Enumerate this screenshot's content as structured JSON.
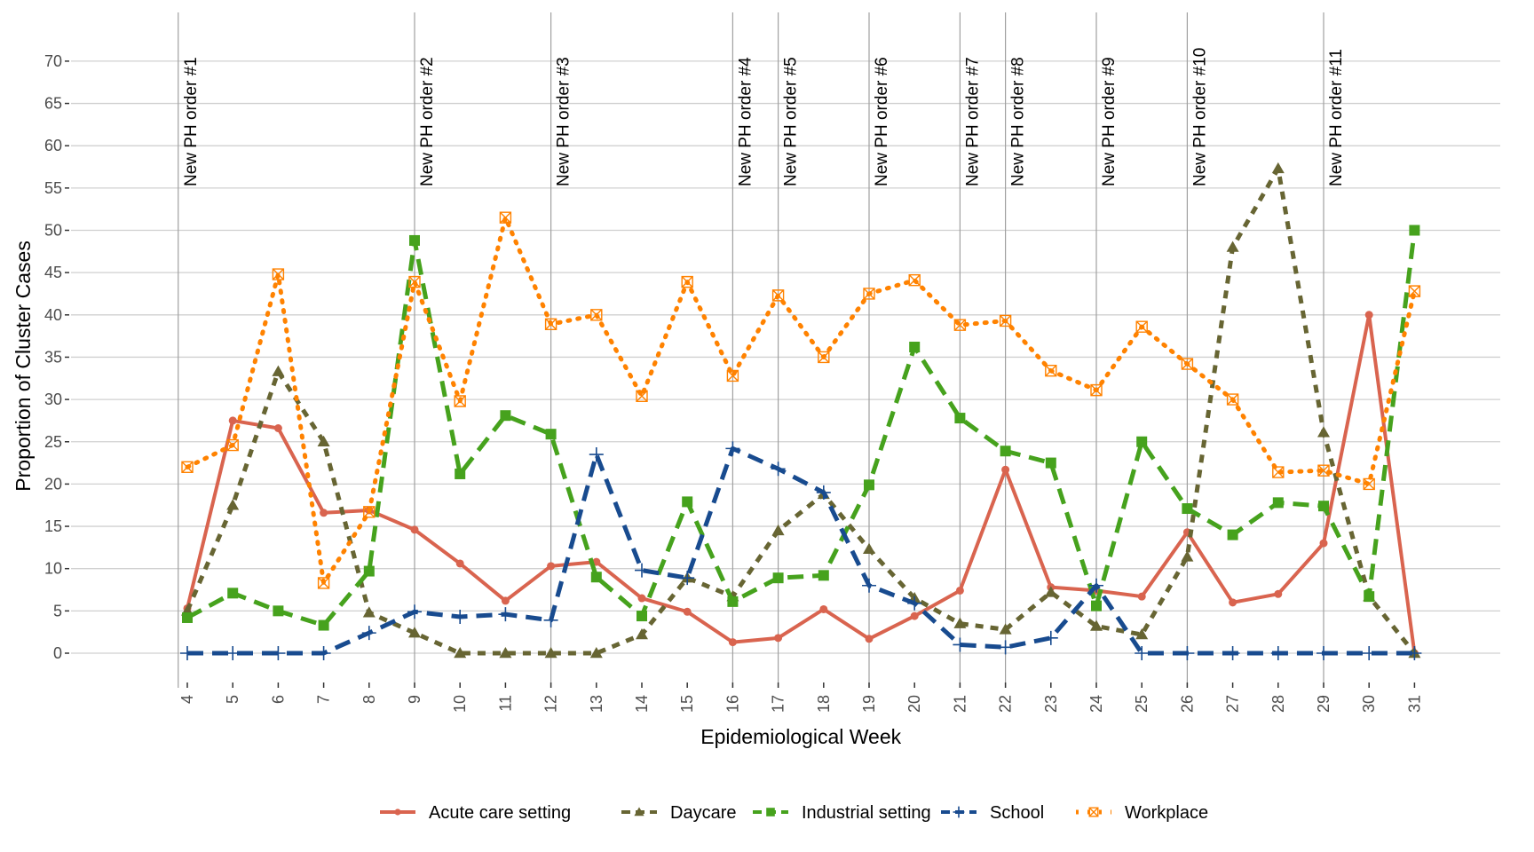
{
  "chart_data": {
    "type": "line",
    "title": "",
    "xlabel": "Epidemiological Week",
    "ylabel": "Proportion of Cluster Cases",
    "x": [
      4,
      5,
      6,
      7,
      8,
      9,
      10,
      11,
      12,
      13,
      14,
      15,
      16,
      17,
      18,
      19,
      20,
      21,
      22,
      23,
      24,
      25,
      26,
      27,
      28,
      29,
      30,
      31
    ],
    "x_tick_labels": [
      "4",
      "5",
      "6",
      "7",
      "8",
      "9",
      "10",
      "11",
      "12",
      "13",
      "14",
      "15",
      "16",
      "17",
      "18",
      "19",
      "20",
      "21",
      "22",
      "23",
      "24",
      "25",
      "26",
      "27",
      "28",
      "29",
      "30",
      "31"
    ],
    "ylim": [
      0,
      70
    ],
    "y_ticks": [
      0,
      5,
      10,
      15,
      20,
      25,
      30,
      35,
      40,
      45,
      50,
      55,
      60,
      65,
      70
    ],
    "grid": true,
    "legend_position": "bottom",
    "series": [
      {
        "name": "Acute care setting",
        "color": "#d9644f",
        "line": "solid",
        "marker": "circle",
        "values": [
          5.3,
          27.5,
          26.6,
          16.6,
          16.9,
          14.6,
          10.6,
          6.2,
          10.3,
          10.8,
          6.5,
          4.9,
          1.3,
          1.8,
          5.2,
          1.7,
          4.4,
          7.4,
          21.7,
          7.8,
          7.4,
          6.7,
          14.3,
          6.0,
          7.0,
          13.0,
          40.0,
          0
        ]
      },
      {
        "name": "Daycare",
        "color": "#676533",
        "line": "short-dash",
        "marker": "triangle",
        "values": [
          5.0,
          17.5,
          33.3,
          25.0,
          4.8,
          2.4,
          0,
          0,
          0,
          0,
          2.2,
          8.9,
          6.7,
          14.5,
          18.8,
          12.3,
          6.5,
          3.5,
          2.8,
          7.2,
          3.2,
          2.2,
          11.4,
          48.0,
          57.3,
          26.1,
          6.7,
          0
        ]
      },
      {
        "name": "Industrial setting",
        "color": "#46a21d",
        "line": "long-dash",
        "marker": "square",
        "values": [
          4.2,
          7.1,
          5.0,
          3.3,
          9.7,
          48.8,
          21.2,
          28.1,
          25.9,
          9.0,
          4.4,
          17.9,
          6.1,
          8.9,
          9.2,
          19.9,
          36.2,
          27.8,
          23.9,
          22.5,
          5.6,
          25.0,
          17.1,
          14.0,
          17.8,
          17.4,
          6.7,
          50.0
        ]
      },
      {
        "name": "School",
        "color": "#184b8f",
        "line": "long-dash",
        "marker": "plus",
        "values": [
          0,
          0,
          0,
          0,
          2.4,
          4.9,
          4.3,
          4.6,
          3.9,
          23.5,
          9.8,
          8.9,
          24.2,
          21.8,
          19.0,
          8.0,
          5.9,
          1.0,
          0.7,
          1.8,
          8.0,
          0,
          0,
          0,
          0,
          0,
          0,
          0
        ]
      },
      {
        "name": "Workplace",
        "color": "#ff8200",
        "line": "dotted",
        "marker": "square-cross",
        "values": [
          22.0,
          24.6,
          44.8,
          8.3,
          16.7,
          43.9,
          29.8,
          51.5,
          38.9,
          40.0,
          30.4,
          43.9,
          32.8,
          42.3,
          35.0,
          42.5,
          44.1,
          38.8,
          39.3,
          33.4,
          31.1,
          38.6,
          34.2,
          30.0,
          21.4,
          21.6,
          20.0,
          42.8
        ]
      }
    ],
    "annotations": [
      {
        "week": 3.8,
        "label": "New PH order #1"
      },
      {
        "week": 9,
        "label": "New PH order #2"
      },
      {
        "week": 12,
        "label": "New PH order #3"
      },
      {
        "week": 16,
        "label": "New PH order #4"
      },
      {
        "week": 17,
        "label": "New PH order #5"
      },
      {
        "week": 19,
        "label": "New PH order #6"
      },
      {
        "week": 21,
        "label": "New PH order #7"
      },
      {
        "week": 22,
        "label": "New PH order #8"
      },
      {
        "week": 24,
        "label": "New PH order #9"
      },
      {
        "week": 26,
        "label": "New PH order #10"
      },
      {
        "week": 29,
        "label": "New PH order #11"
      }
    ]
  }
}
